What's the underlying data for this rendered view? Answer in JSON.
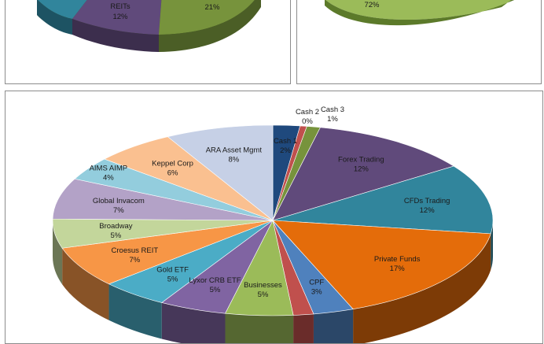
{
  "chart_data": [
    {
      "type": "pie",
      "labels": [
        {
          "name": "REITs",
          "value": "12%"
        },
        {
          "name": "",
          "value": "21%"
        }
      ],
      "colors": {
        "teal": "#31859c",
        "purple": "#604a7b",
        "green": "#77933c"
      }
    },
    {
      "type": "pie",
      "labels": [
        {
          "name": "",
          "value": "72%"
        }
      ],
      "colors": {
        "green": "#9bbb59"
      }
    },
    {
      "type": "pie",
      "startAngleDeg": 0,
      "slices": [
        {
          "name": "Cash 1",
          "value": 2,
          "label": "2%",
          "color": "#1f497d"
        },
        {
          "name": "Cash 2",
          "value": 0.5,
          "label": "0%",
          "color": "#c0504d"
        },
        {
          "name": "Cash 3",
          "value": 1,
          "label": "1%",
          "color": "#77933c"
        },
        {
          "name": "Forex Trading",
          "value": 12,
          "label": "12%",
          "color": "#604a7b"
        },
        {
          "name": "CFDs Trading",
          "value": 12,
          "label": "12%",
          "color": "#31859c"
        },
        {
          "name": "Private Funds",
          "value": 17,
          "label": "17%",
          "color": "#e46c0a"
        },
        {
          "name": "CPF",
          "value": 3,
          "label": "3%",
          "color": "#4f81bd"
        },
        {
          "name": "",
          "value": 1.5,
          "label": "",
          "color": "#c0504d"
        },
        {
          "name": "Businesses",
          "value": 5,
          "label": "5%",
          "color": "#9bbb59"
        },
        {
          "name": "Lyxor CRB ETF",
          "value": 5,
          "label": "5%",
          "color": "#8064a2"
        },
        {
          "name": "Gold ETF",
          "value": 5,
          "label": "5%",
          "color": "#4bacc6"
        },
        {
          "name": "Croesus REIT",
          "value": 7,
          "label": "7%",
          "color": "#f79646"
        },
        {
          "name": "Broadway",
          "value": 5,
          "label": "5%",
          "color": "#c3d69b"
        },
        {
          "name": "Global Invacom",
          "value": 7,
          "label": "7%",
          "color": "#b3a2c7"
        },
        {
          "name": "AIMS AIMP",
          "value": 4,
          "label": "4%",
          "color": "#93cddd"
        },
        {
          "name": "Keppel Corp",
          "value": 6,
          "label": "6%",
          "color": "#fac090"
        },
        {
          "name": "ARA Asset Mgmt",
          "value": 8,
          "label": "8%",
          "color": "#c6d0e6"
        }
      ]
    }
  ]
}
